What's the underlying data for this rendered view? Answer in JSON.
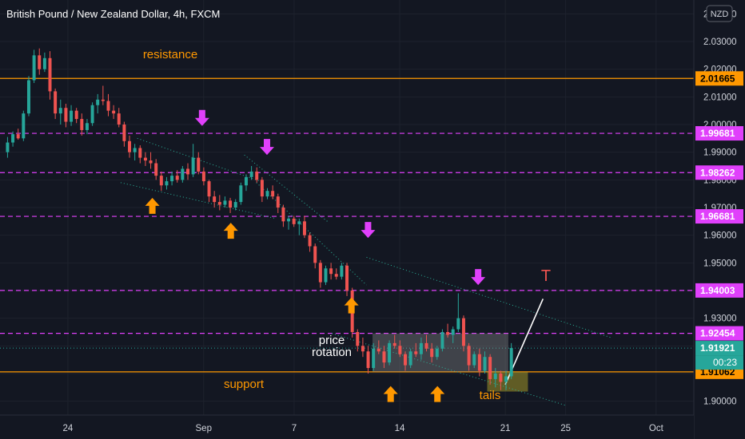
{
  "header": {
    "title": "British Pound / New Zealand Dollar, 4h, FXCM",
    "currency_badge": "NZD",
    "countdown": "00:23"
  },
  "chart_data": {
    "type": "candlestick",
    "title": "British Pound / New Zealand Dollar, 4h, FXCM",
    "instrument": "GBPNZD",
    "timeframe": "4h",
    "ylim": [
      1.895,
      2.045
    ],
    "y_ticks": [
      "2.04000",
      "2.03000",
      "2.02000",
      "2.01000",
      "2.00000",
      "1.99000",
      "1.98000",
      "1.97000",
      "1.96000",
      "1.95000",
      "1.94000",
      "1.93000",
      "1.92000",
      "1.91000",
      "1.90000"
    ],
    "x_ticks": [
      "24",
      "Sep",
      "7",
      "14",
      "21",
      "25",
      "Oct"
    ],
    "x_tick_days": [
      -9,
      0,
      6,
      13,
      20,
      24,
      30
    ],
    "xlim_days": [
      -13.5,
      32.5
    ],
    "colors": {
      "up": "#26a69a",
      "down": "#ef5350",
      "magenta": "#e040fb",
      "orange": "#ff9800",
      "support": "#f7a33b"
    },
    "levels": [
      {
        "kind": "support-resistance",
        "value": 2.01665,
        "label": "2.01665",
        "color": "#ff9800",
        "style": "solid"
      },
      {
        "kind": "dashed",
        "value": 1.99681,
        "label": "1.99681",
        "color": "#e040fb",
        "style": "dashed"
      },
      {
        "kind": "dashed",
        "value": 1.98262,
        "label": "1.98262",
        "color": "#e040fb",
        "style": "dashed"
      },
      {
        "kind": "dashed",
        "value": 1.96681,
        "label": "1.96681",
        "color": "#e040fb",
        "style": "dashed"
      },
      {
        "kind": "dashed",
        "value": 1.94003,
        "label": "1.94003",
        "color": "#e040fb",
        "style": "dashed"
      },
      {
        "kind": "dashed",
        "value": 1.92454,
        "label": "1.92454",
        "color": "#e040fb",
        "style": "dashed"
      },
      {
        "kind": "support-resistance",
        "value": 1.91062,
        "label": "1.91062",
        "color": "#ff9800",
        "style": "solid"
      }
    ],
    "current_price": {
      "value": 1.91921,
      "label": "1.91921",
      "color": "#26a69a"
    },
    "annotations": {
      "resistance": "resistance",
      "support": "support",
      "price_rotation_1": "price",
      "price_rotation_2": "rotation",
      "tails": "tails",
      "target": "T"
    },
    "rotation_box": {
      "day_start": 11.2,
      "day_end": 20.2,
      "y_top": 1.9245,
      "y_bottom": 1.9106
    },
    "tails_box": {
      "day_start": 18.8,
      "day_end": 21.5,
      "y_top": 1.9106,
      "y_bottom": 1.9035
    },
    "target_line": {
      "from": [
        20.0,
        1.906
      ],
      "to": [
        22.5,
        1.937
      ]
    },
    "trendlines": [
      {
        "from": [
          -4.4,
          1.995
        ],
        "to": [
          4.0,
          1.979
        ]
      },
      {
        "from": [
          -5.5,
          1.979
        ],
        "to": [
          4.8,
          1.966
        ]
      },
      {
        "from": [
          2.7,
          1.989
        ],
        "to": [
          8.2,
          1.965
        ]
      },
      {
        "from": [
          3.5,
          1.979
        ],
        "to": [
          10.8,
          1.942
        ]
      },
      {
        "from": [
          10.8,
          1.952
        ],
        "to": [
          27.0,
          1.923
        ]
      },
      {
        "from": [
          8.5,
          1.9245
        ],
        "to": [
          24.0,
          1.8985
        ]
      }
    ],
    "down_arrows": [
      {
        "day": -0.1,
        "price": 1.9995
      },
      {
        "day": 4.2,
        "price": 1.989
      },
      {
        "day": 10.9,
        "price": 1.959
      },
      {
        "day": 18.2,
        "price": 1.942
      }
    ],
    "up_arrows": [
      {
        "day": -3.4,
        "price": 1.9735
      },
      {
        "day": 1.8,
        "price": 1.9645
      },
      {
        "day": 9.8,
        "price": 1.9375
      },
      {
        "day": 12.4,
        "price": 1.9055
      },
      {
        "day": 15.5,
        "price": 1.9055
      }
    ],
    "candles": [
      [
        1.99,
        1.9955,
        1.988,
        1.9935
      ],
      [
        1.9935,
        1.9975,
        1.992,
        1.9965
      ],
      [
        1.9965,
        1.9985,
        1.9945,
        1.995
      ],
      [
        1.995,
        2.005,
        1.994,
        2.004
      ],
      [
        2.004,
        2.0175,
        2.003,
        2.016
      ],
      [
        2.016,
        2.027,
        2.015,
        2.025
      ],
      [
        2.025,
        2.0275,
        2.018,
        2.02
      ],
      [
        2.02,
        2.026,
        2.019,
        2.024
      ],
      [
        2.024,
        2.0265,
        2.009,
        2.012
      ],
      [
        2.012,
        2.013,
        2.002,
        2.004
      ],
      [
        2.004,
        2.009,
        2.0,
        2.006
      ],
      [
        2.006,
        2.0075,
        1.999,
        2.001
      ],
      [
        2.001,
        2.007,
        1.9995,
        2.005
      ],
      [
        2.005,
        2.006,
        2.0005,
        2.002
      ],
      [
        2.002,
        2.004,
        1.996,
        1.998
      ],
      [
        1.998,
        2.002,
        1.9965,
        2.0005
      ],
      [
        2.0005,
        2.008,
        1.9995,
        2.007
      ],
      [
        2.007,
        2.011,
        2.004,
        2.009
      ],
      [
        2.009,
        2.014,
        2.007,
        2.0085
      ],
      [
        2.0085,
        2.011,
        2.003,
        2.005
      ],
      [
        2.005,
        2.007,
        2.002,
        2.004
      ],
      [
        2.004,
        2.006,
        1.999,
        2.0
      ],
      [
        2.0,
        2.001,
        1.992,
        1.994
      ],
      [
        1.994,
        1.996,
        1.988,
        1.99
      ],
      [
        1.99,
        1.993,
        1.987,
        1.9915
      ],
      [
        1.9915,
        1.9925,
        1.986,
        1.988
      ],
      [
        1.988,
        1.99,
        1.985,
        1.987
      ],
      [
        1.987,
        1.99,
        1.984,
        1.986
      ],
      [
        1.986,
        1.9875,
        1.98,
        1.9815
      ],
      [
        1.9815,
        1.983,
        1.976,
        1.978
      ],
      [
        1.978,
        1.981,
        1.9765,
        1.9795
      ],
      [
        1.9795,
        1.983,
        1.978,
        1.9815
      ],
      [
        1.9815,
        1.9835,
        1.979,
        1.98
      ],
      [
        1.98,
        1.985,
        1.979,
        1.984
      ],
      [
        1.984,
        1.986,
        1.98,
        1.982
      ],
      [
        1.982,
        1.993,
        1.981,
        1.988
      ],
      [
        1.988,
        1.99,
        1.982,
        1.983
      ],
      [
        1.983,
        1.9845,
        1.978,
        1.9795
      ],
      [
        1.9795,
        1.98,
        1.972,
        1.974
      ],
      [
        1.974,
        1.976,
        1.97,
        1.972
      ],
      [
        1.972,
        1.9745,
        1.969,
        1.971
      ],
      [
        1.971,
        1.974,
        1.97,
        1.9725
      ],
      [
        1.9725,
        1.9735,
        1.968,
        1.97
      ],
      [
        1.97,
        1.973,
        1.969,
        1.972
      ],
      [
        1.972,
        1.979,
        1.971,
        1.978
      ],
      [
        1.978,
        1.982,
        1.976,
        1.981
      ],
      [
        1.981,
        1.985,
        1.98,
        1.983
      ],
      [
        1.983,
        1.9845,
        1.979,
        1.98
      ],
      [
        1.98,
        1.981,
        1.972,
        1.974
      ],
      [
        1.974,
        1.977,
        1.973,
        1.976
      ],
      [
        1.976,
        1.978,
        1.973,
        1.974
      ],
      [
        1.974,
        1.975,
        1.968,
        1.97
      ],
      [
        1.97,
        1.971,
        1.963,
        1.965
      ],
      [
        1.965,
        1.967,
        1.962,
        1.966
      ],
      [
        1.966,
        1.967,
        1.963,
        1.964
      ],
      [
        1.964,
        1.966,
        1.96,
        1.965
      ],
      [
        1.965,
        1.967,
        1.959,
        1.96
      ],
      [
        1.96,
        1.961,
        1.954,
        1.956
      ],
      [
        1.956,
        1.957,
        1.948,
        1.95
      ],
      [
        1.95,
        1.951,
        1.941,
        1.943
      ],
      [
        1.943,
        1.949,
        1.942,
        1.948
      ],
      [
        1.948,
        1.95,
        1.944,
        1.946
      ],
      [
        1.946,
        1.948,
        1.944,
        1.945
      ],
      [
        1.945,
        1.95,
        1.944,
        1.949
      ],
      [
        1.949,
        1.95,
        1.938,
        1.94
      ],
      [
        1.94,
        1.941,
        1.923,
        1.925
      ],
      [
        1.925,
        1.926,
        1.918,
        1.92
      ],
      [
        1.92,
        1.923,
        1.916,
        1.918
      ],
      [
        1.918,
        1.92,
        1.91,
        1.912
      ],
      [
        1.912,
        1.921,
        1.911,
        1.919
      ],
      [
        1.919,
        1.922,
        1.917,
        1.918
      ],
      [
        1.918,
        1.92,
        1.912,
        1.914
      ],
      [
        1.914,
        1.922,
        1.913,
        1.921
      ],
      [
        1.921,
        1.924,
        1.919,
        1.92
      ],
      [
        1.92,
        1.922,
        1.916,
        1.917
      ],
      [
        1.917,
        1.918,
        1.911,
        1.913
      ],
      [
        1.913,
        1.919,
        1.912,
        1.918
      ],
      [
        1.918,
        1.921,
        1.916,
        1.917
      ],
      [
        1.917,
        1.923,
        1.915,
        1.921
      ],
      [
        1.921,
        1.924,
        1.918,
        1.919
      ],
      [
        1.919,
        1.921,
        1.914,
        1.916
      ],
      [
        1.916,
        1.92,
        1.915,
        1.919
      ],
      [
        1.919,
        1.926,
        1.918,
        1.925
      ],
      [
        1.925,
        1.928,
        1.923,
        1.924
      ],
      [
        1.924,
        1.927,
        1.921,
        1.926
      ],
      [
        1.926,
        1.939,
        1.925,
        1.93
      ],
      [
        1.93,
        1.931,
        1.918,
        1.92
      ],
      [
        1.92,
        1.921,
        1.911,
        1.913
      ],
      [
        1.913,
        1.918,
        1.912,
        1.917
      ],
      [
        1.917,
        1.919,
        1.909,
        1.911
      ],
      [
        1.911,
        1.918,
        1.91,
        1.916
      ],
      [
        1.916,
        1.917,
        1.906,
        1.908
      ],
      [
        1.908,
        1.912,
        1.905,
        1.91
      ],
      [
        1.91,
        1.911,
        1.904,
        1.907
      ],
      [
        1.907,
        1.911,
        1.904,
        1.909
      ],
      [
        1.909,
        1.921,
        1.908,
        1.9192
      ]
    ]
  }
}
